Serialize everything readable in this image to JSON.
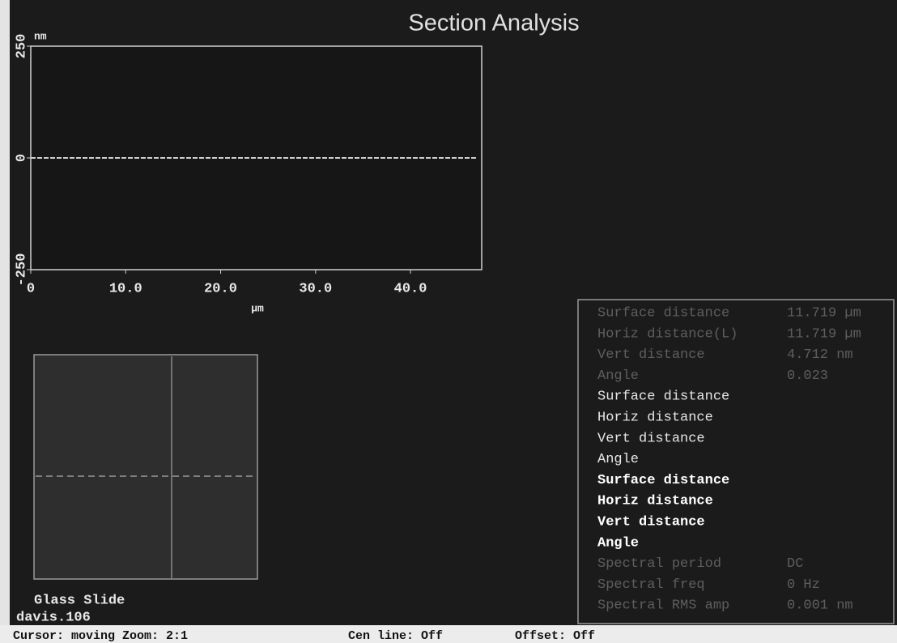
{
  "chart_data": {
    "type": "line",
    "title": "Section Analysis",
    "y_unit": "nm",
    "x_label": "µm",
    "x": [
      0,
      4,
      8,
      12,
      16,
      20,
      24,
      28,
      32,
      36,
      40,
      44,
      47
    ],
    "values": [
      0,
      0,
      0,
      0,
      0,
      0,
      0,
      0,
      0,
      0,
      0,
      0,
      0
    ],
    "color": "#cfcfcf",
    "xlim": [
      0,
      47.5
    ],
    "ylim": [
      -250,
      250
    ],
    "xticks": [
      0,
      {
        "value": 10,
        "label": "10.0"
      },
      {
        "value": 20,
        "label": "20.0"
      },
      {
        "value": 30,
        "label": "30.0"
      },
      {
        "value": 40,
        "label": "40.0"
      }
    ],
    "yticks": [
      250,
      0,
      -250
    ]
  },
  "image_panel": {
    "label": "Glass Slide",
    "file": "davis.106"
  },
  "readouts": [
    {
      "color": "#5e5e5e",
      "bold": false,
      "rows": [
        {
          "label": "Surface distance",
          "value": "11.719 µm"
        },
        {
          "label": "Horiz distance(L)",
          "value": "11.719 µm"
        },
        {
          "label": "Vert distance",
          "value": "4.712 nm"
        },
        {
          "label": "Angle",
          "value": "0.023"
        }
      ]
    },
    {
      "color": "#e6e6e6",
      "bold": false,
      "rows": [
        {
          "label": "Surface distance"
        },
        {
          "label": "Horiz distance"
        },
        {
          "label": "Vert distance"
        },
        {
          "label": "Angle"
        }
      ]
    },
    {
      "color": "#ffffff",
      "bold": true,
      "rows": [
        {
          "label": "Surface distance"
        },
        {
          "label": "Horiz distance"
        },
        {
          "label": "Vert distance"
        },
        {
          "label": "Angle"
        }
      ]
    },
    {
      "color": "#5e5e5e",
      "bold": false,
      "rows": [
        {
          "label": "Spectral period",
          "value": "DC"
        },
        {
          "label": "Spectral freq",
          "value": "0 Hz"
        },
        {
          "label": "Spectral RMS amp",
          "value": "0.001 nm"
        }
      ]
    }
  ],
  "status_bar": [
    "Cursor: moving  Zoom: 2:1",
    "Cen line: Off",
    "Offset: Off"
  ]
}
